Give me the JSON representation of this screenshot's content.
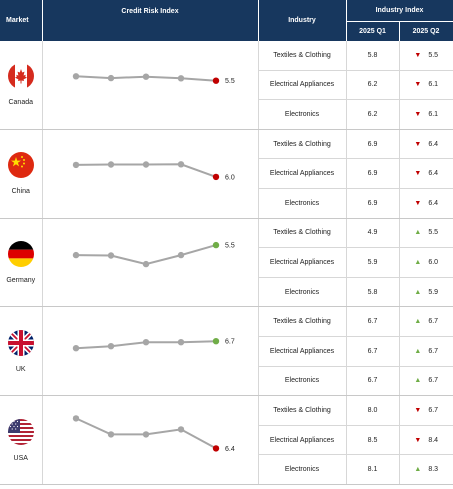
{
  "header": {
    "market": "Market",
    "credit_risk_index": "Credit Risk Index",
    "industry": "Industry",
    "industry_index": "Industry Index",
    "q1": "2025 Q1",
    "q2": "2025 Q2"
  },
  "colors": {
    "header_bg": "#17375e",
    "down": "#c00000",
    "up": "#70ad47",
    "line": "#a6a6a6"
  },
  "countries": [
    {
      "name": "Canada",
      "spark": {
        "values": [
          5.72,
          5.63,
          5.7,
          5.62,
          5.5
        ],
        "label": "5.5",
        "end_color": "#c00000"
      },
      "industries": [
        {
          "name": "Textiles & Clothing",
          "q1": "5.8",
          "q2": "5.5",
          "trend": "down"
        },
        {
          "name": "Electrical Appliances",
          "q1": "6.2",
          "q2": "6.1",
          "trend": "down"
        },
        {
          "name": "Electronics",
          "q1": "6.2",
          "q2": "6.1",
          "trend": "down"
        }
      ]
    },
    {
      "name": "China",
      "spark": {
        "values": [
          6.6,
          6.62,
          6.62,
          6.63,
          6.0
        ],
        "label": "6.0",
        "end_color": "#c00000"
      },
      "industries": [
        {
          "name": "Textiles & Clothing",
          "q1": "6.9",
          "q2": "6.4",
          "trend": "down"
        },
        {
          "name": "Electrical Appliances",
          "q1": "6.9",
          "q2": "6.4",
          "trend": "down"
        },
        {
          "name": "Electronics",
          "q1": "6.9",
          "q2": "6.4",
          "trend": "down"
        }
      ]
    },
    {
      "name": "Germany",
      "spark": {
        "values": [
          5.0,
          4.98,
          4.55,
          5.0,
          5.5
        ],
        "label": "5.5",
        "end_color": "#70ad47"
      },
      "industries": [
        {
          "name": "Textiles & Clothing",
          "q1": "4.9",
          "q2": "5.5",
          "trend": "up"
        },
        {
          "name": "Electrical Appliances",
          "q1": "5.9",
          "q2": "6.0",
          "trend": "up"
        },
        {
          "name": "Electronics",
          "q1": "5.8",
          "q2": "5.9",
          "trend": "up"
        }
      ]
    },
    {
      "name": "UK",
      "spark": {
        "values": [
          6.35,
          6.45,
          6.65,
          6.65,
          6.7
        ],
        "label": "6.7",
        "end_color": "#70ad47"
      },
      "industries": [
        {
          "name": "Textiles & Clothing",
          "q1": "6.7",
          "q2": "6.7",
          "trend": "up"
        },
        {
          "name": "Electrical Appliances",
          "q1": "6.7",
          "q2": "6.7",
          "trend": "up"
        },
        {
          "name": "Electronics",
          "q1": "6.7",
          "q2": "6.7",
          "trend": "up"
        }
      ]
    },
    {
      "name": "USA",
      "spark": {
        "values": [
          7.9,
          7.1,
          7.1,
          7.35,
          6.4
        ],
        "label": "6.4",
        "end_color": "#c00000"
      },
      "industries": [
        {
          "name": "Textiles & Clothing",
          "q1": "8.0",
          "q2": "6.7",
          "trend": "down"
        },
        {
          "name": "Electrical Appliances",
          "q1": "8.5",
          "q2": "8.4",
          "trend": "down"
        },
        {
          "name": "Electronics",
          "q1": "8.1",
          "q2": "8.3",
          "trend": "up"
        }
      ]
    }
  ]
}
